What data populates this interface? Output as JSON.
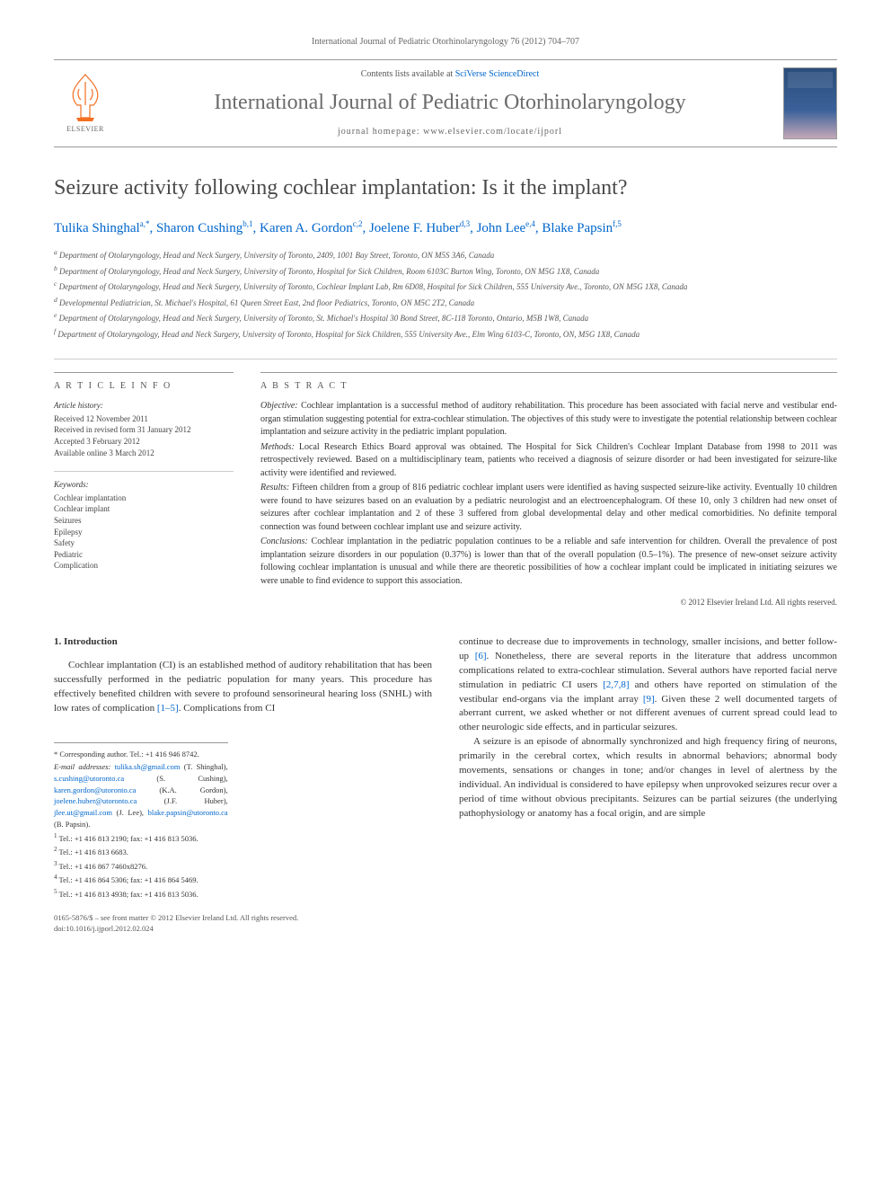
{
  "header": {
    "citation": "International Journal of Pediatric Otorhinolaryngology 76 (2012) 704–707",
    "contents_prefix": "Contents lists available at ",
    "contents_link": "SciVerse ScienceDirect",
    "journal_name": "International Journal of Pediatric Otorhinolaryngology",
    "homepage_prefix": "journal homepage: ",
    "homepage": "www.elsevier.com/locate/ijporl",
    "elsevier_label": "ELSEVIER"
  },
  "title": "Seizure activity following cochlear implantation: Is it the implant?",
  "authors_html": "Tulika Shinghal<sup>a,*</sup>, Sharon Cushing<sup>b,1</sup>, Karen A. Gordon<sup>c,2</sup>, Joelene F. Huber<sup>d,3</sup>, John Lee<sup>e,4</sup>, Blake Papsin<sup>f,5</sup>",
  "affiliations": [
    "a Department of Otolaryngology, Head and Neck Surgery, University of Toronto, 2409, 1001 Bay Street, Toronto, ON M5S 3A6, Canada",
    "b Department of Otolaryngology, Head and Neck Surgery, University of Toronto, Hospital for Sick Children, Room 6103C Burton Wing, Toronto, ON M5G 1X8, Canada",
    "c Department of Otolaryngology, Head and Neck Surgery, University of Toronto, Cochlear Implant Lab, Rm 6D08, Hospital for Sick Children, 555 University Ave., Toronto, ON M5G 1X8, Canada",
    "d Developmental Pediatrician, St. Michael's Hospital, 61 Queen Street East, 2nd floor Pediatrics, Toronto, ON M5C 2T2, Canada",
    "e Department of Otolaryngology, Head and Neck Surgery, University of Toronto, St. Michael's Hospital 30 Bond Street, 8C-118 Toronto, Ontario, M5B 1W8, Canada",
    "f Department of Otolaryngology, Head and Neck Surgery, University of Toronto, Hospital for Sick Children, 555 University Ave., Elm Wing 6103-C, Toronto, ON, M5G 1X8, Canada"
  ],
  "article_info": {
    "heading": "A R T I C L E  I N F O",
    "history_heading": "Article history:",
    "history": [
      "Received 12 November 2011",
      "Received in revised form 31 January 2012",
      "Accepted 3 February 2012",
      "Available online 3 March 2012"
    ],
    "keywords_heading": "Keywords:",
    "keywords": [
      "Cochlear implantation",
      "Cochlear implant",
      "Seizures",
      "Epilepsy",
      "Safety",
      "Pediatric",
      "Complication"
    ]
  },
  "abstract": {
    "heading": "A B S T R A C T",
    "sections": [
      {
        "label": "Objective:",
        "text": "Cochlear implantation is a successful method of auditory rehabilitation. This procedure has been associated with facial nerve and vestibular end-organ stimulation suggesting potential for extra-cochlear stimulation. The objectives of this study were to investigate the potential relationship between cochlear implantation and seizure activity in the pediatric implant population."
      },
      {
        "label": "Methods:",
        "text": "Local Research Ethics Board approval was obtained. The Hospital for Sick Children's Cochlear Implant Database from 1998 to 2011 was retrospectively reviewed. Based on a multidisciplinary team, patients who received a diagnosis of seizure disorder or had been investigated for seizure-like activity were identified and reviewed."
      },
      {
        "label": "Results:",
        "text": "Fifteen children from a group of 816 pediatric cochlear implant users were identified as having suspected seizure-like activity. Eventually 10 children were found to have seizures based on an evaluation by a pediatric neurologist and an electroencephalogram. Of these 10, only 3 children had new onset of seizures after cochlear implantation and 2 of these 3 suffered from global developmental delay and other medical comorbidities. No definite temporal connection was found between cochlear implant use and seizure activity."
      },
      {
        "label": "Conclusions:",
        "text": "Cochlear implantation in the pediatric population continues to be a reliable and safe intervention for children. Overall the prevalence of post implantation seizure disorders in our population (0.37%) is lower than that of the overall population (0.5–1%). The presence of new-onset seizure activity following cochlear implantation is unusual and while there are theoretic possibilities of how a cochlear implant could be implicated in initiating seizures we were unable to find evidence to support this association."
      }
    ],
    "copyright": "© 2012 Elsevier Ireland Ltd. All rights reserved."
  },
  "body": {
    "section_heading": "1. Introduction",
    "col1_para1_pre": "Cochlear implantation (CI) is an established method of auditory rehabilitation that has been successfully performed in the pediatric population for many years. This procedure has effectively benefited children with severe to profound sensorineural hearing loss (SNHL) with low rates of complication ",
    "col1_ref1": "[1–5]",
    "col1_para1_post": ". Complications from CI",
    "col2_para1_pre": "continue to decrease due to improvements in technology, smaller incisions, and better follow-up ",
    "col2_ref1": "[6]",
    "col2_para1_mid1": ". Nonetheless, there are several reports in the literature that address uncommon complications related to extra-cochlear stimulation. Several authors have reported facial nerve stimulation in pediatric CI users ",
    "col2_ref2": "[2,7,8]",
    "col2_para1_mid2": " and others have reported on stimulation of the vestibular end-organs via the implant array ",
    "col2_ref3": "[9]",
    "col2_para1_post": ". Given these 2 well documented targets of aberrant current, we asked whether or not different avenues of current spread could lead to other neurologic side effects, and in particular seizures.",
    "col2_para2": "A seizure is an episode of abnormally synchronized and high frequency firing of neurons, primarily in the cerebral cortex, which results in abnormal behaviors; abnormal body movements, sensations or changes in tone; and/or changes in level of alertness by the individual. An individual is considered to have epilepsy when unprovoked seizures recur over a period of time without obvious precipitants. Seizures can be partial seizures (the underlying pathophysiology or anatomy has a focal origin, and are simple"
  },
  "footnotes": {
    "corr": "* Corresponding author. Tel.: +1 416 946 8742.",
    "emails_label": "E-mail addresses:",
    "emails": [
      {
        "email": "tulika.sh@gmail.com",
        "name": "(T. Shinghal),"
      },
      {
        "email": "s.cushing@utoronto.ca",
        "name": "(S. Cushing),"
      },
      {
        "email": "karen.gordon@utoronto.ca",
        "name": "(K.A. Gordon),"
      },
      {
        "email": "joelene.huber@utoronto.ca",
        "name": "(J.F. Huber),"
      },
      {
        "email": "jlee.ut@gmail.com",
        "name": "(J. Lee),"
      },
      {
        "email": "blake.papsin@utoronto.ca",
        "name": "(B. Papsin)."
      }
    ],
    "tels": [
      "1 Tel.: +1 416 813 2190; fax: +1 416 813 5036.",
      "2 Tel.: +1 416 813 6683.",
      "3 Tel.: +1 416 867 7460x8276.",
      "4 Tel.: +1 416 864 5306; fax: +1 416 864 5469.",
      "5 Tel.: +1 416 813 4938; fax: +1 416 813 5036."
    ]
  },
  "footer": {
    "line1": "0165-5876/$ – see front matter © 2012 Elsevier Ireland Ltd. All rights reserved.",
    "line2": "doi:10.1016/j.ijporl.2012.02.024"
  },
  "colors": {
    "link": "#0066cc",
    "text": "#333333",
    "muted": "#666666",
    "elsevier_orange": "#f36e21",
    "journal_grey": "#6b6b6b"
  }
}
